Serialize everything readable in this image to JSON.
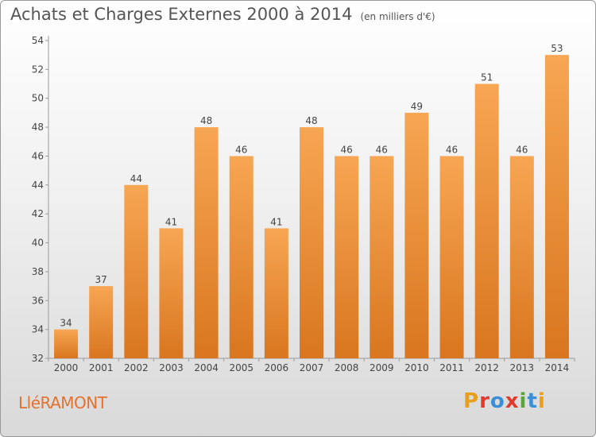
{
  "header": {
    "title": "Achats et Charges Externes 2000 à 2014",
    "subtitle": "(en milliers d'€)"
  },
  "footer": {
    "location": "LléRAMONT",
    "brand": "Proxiti",
    "brand_colors": [
      "#e8a01c",
      "#e23b2e",
      "#3b8fd6",
      "#e23b2e",
      "#5aa43a",
      "#3b8fd6",
      "#e8a01c"
    ]
  },
  "chart_data": {
    "type": "bar",
    "categories": [
      "2000",
      "2001",
      "2002",
      "2003",
      "2004",
      "2005",
      "2006",
      "2007",
      "2008",
      "2009",
      "2010",
      "2011",
      "2012",
      "2013",
      "2014"
    ],
    "values": [
      34,
      37,
      44,
      41,
      48,
      46,
      41,
      48,
      46,
      46,
      49,
      46,
      51,
      46,
      53
    ],
    "ylim": [
      32,
      54
    ],
    "yticks": [
      32,
      34,
      36,
      38,
      40,
      42,
      44,
      46,
      48,
      50,
      52,
      54
    ],
    "grid": false,
    "bar_color_top": "#f7a653",
    "bar_color_bottom": "#d9761f",
    "xlabel": "",
    "ylabel": ""
  }
}
